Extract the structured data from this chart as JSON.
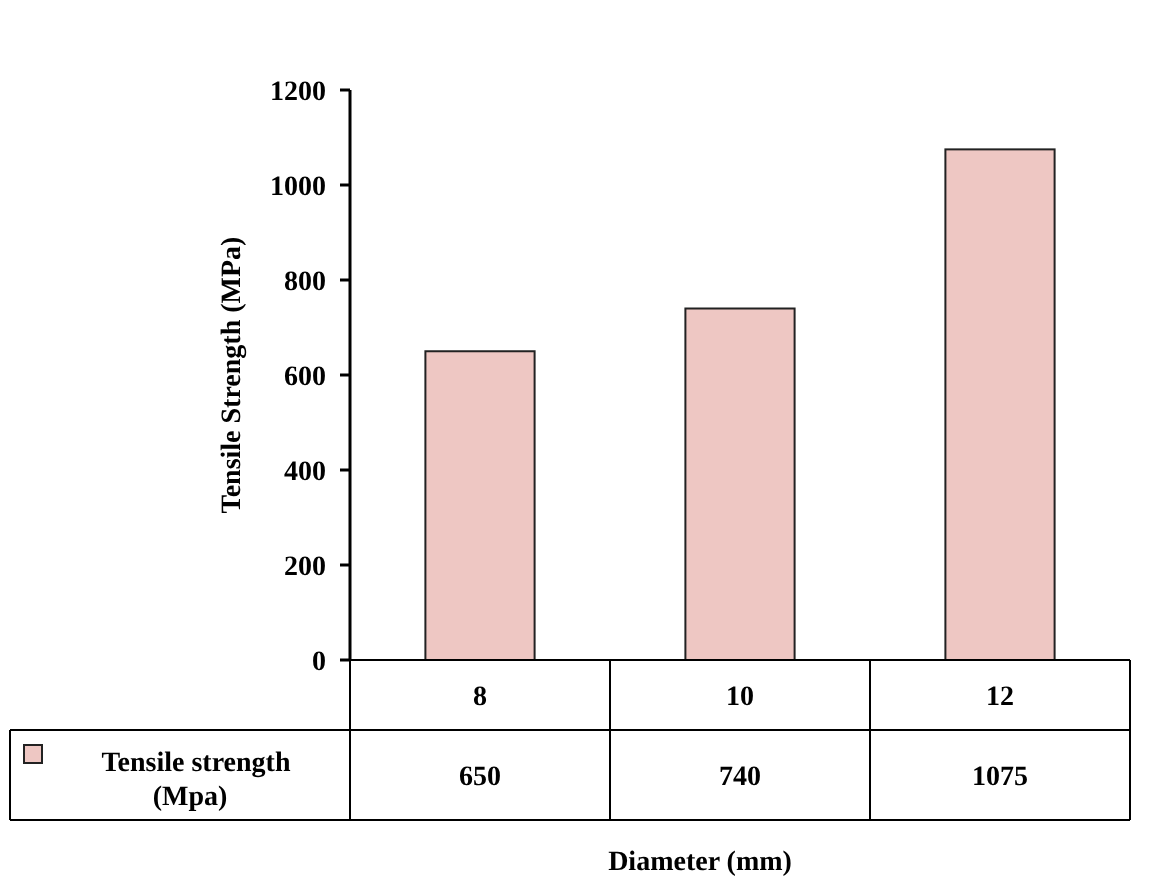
{
  "chart_data": {
    "type": "bar",
    "xlabel": "Diameter (mm)",
    "ylabel": "Tensile Strength (MPa)",
    "categories": [
      "8",
      "10",
      "12"
    ],
    "series": [
      {
        "name": "Tensile strength (Mpa)",
        "color": "#eec7c3",
        "values": [
          650,
          740,
          1075
        ]
      }
    ],
    "ylim": [
      0,
      1200
    ],
    "yticks": [
      0,
      200,
      400,
      600,
      800,
      1000,
      1200
    ],
    "grid": false,
    "legend": "bottom",
    "data_labels": true
  }
}
